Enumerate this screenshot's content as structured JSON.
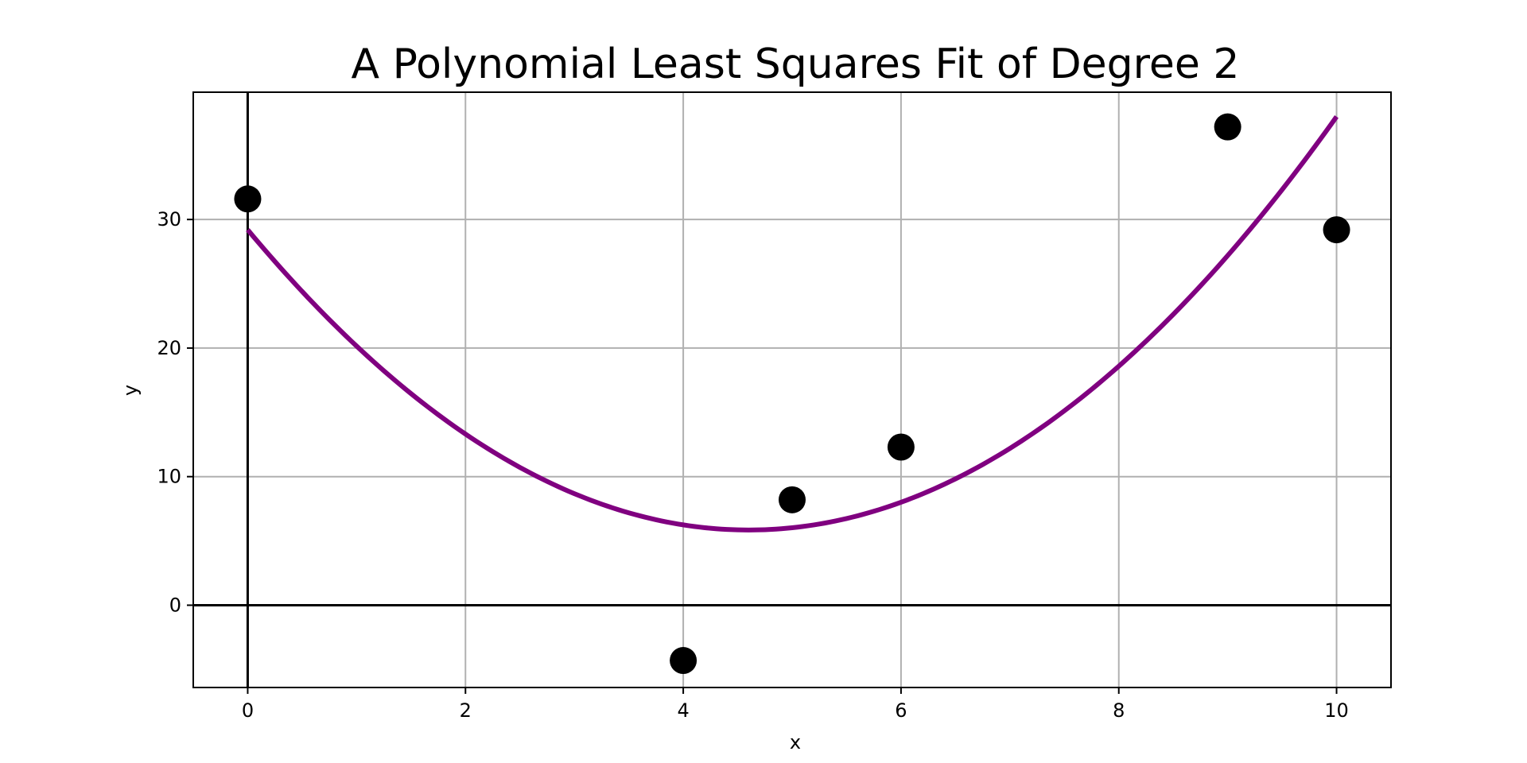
{
  "chart_data": {
    "type": "scatter",
    "title": "A Polynomial Least Squares Fit of Degree 2",
    "xlabel": "x",
    "ylabel": "y",
    "xlim": [
      -0.5,
      10.5
    ],
    "ylim": [
      -6.4,
      39.9
    ],
    "xticks": [
      0,
      2,
      4,
      6,
      8,
      10
    ],
    "yticks": [
      0,
      10,
      20,
      30
    ],
    "grid": true,
    "reference_lines": {
      "x": 0,
      "y": 0
    },
    "series": [
      {
        "kind": "points",
        "color": "#000000",
        "x": [
          0,
          4,
          5,
          6,
          9,
          10
        ],
        "y": [
          31.6,
          -4.3,
          8.2,
          12.3,
          37.2,
          29.2
        ]
      },
      {
        "kind": "fit-curve",
        "degree": 2,
        "color": "#800080",
        "coefficients": [
          1.103,
          -10.15,
          29.2
        ],
        "x_range": [
          0,
          10
        ]
      }
    ]
  }
}
